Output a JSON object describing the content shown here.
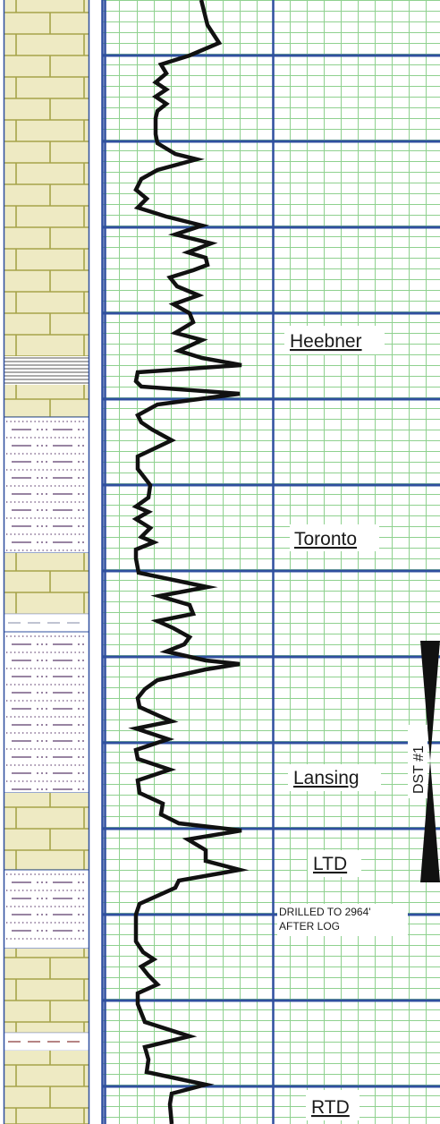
{
  "colors": {
    "grid_major": "#2f4f9f",
    "grid_minor": "#8fd18f",
    "curve": "#111111",
    "limestone_fill": "#eeeac3",
    "limestone_line": "#a6a34a",
    "shale_dot": "#5b3a6b",
    "track_border": "#2f4f9f"
  },
  "chart_data": {
    "type": "line",
    "series": [
      {
        "values": [
          [
            0,
            225
          ],
          [
            28,
            232
          ],
          [
            48,
            245
          ],
          [
            62,
            212
          ],
          [
            72,
            180
          ],
          [
            82,
            186
          ],
          [
            92,
            174
          ],
          [
            100,
            186
          ],
          [
            108,
            174
          ],
          [
            116,
            186
          ],
          [
            124,
            176
          ],
          [
            132,
            174
          ],
          [
            150,
            174
          ],
          [
            160,
            176
          ],
          [
            172,
            196
          ],
          [
            178,
            220
          ],
          [
            190,
            176
          ],
          [
            200,
            158
          ],
          [
            212,
            152
          ],
          [
            222,
            164
          ],
          [
            232,
            154
          ],
          [
            242,
            186
          ],
          [
            252,
            226
          ],
          [
            262,
            196
          ],
          [
            272,
            236
          ],
          [
            282,
            210
          ],
          [
            288,
            230
          ],
          [
            296,
            232
          ],
          [
            302,
            216
          ],
          [
            310,
            190
          ],
          [
            320,
            198
          ],
          [
            330,
            222
          ],
          [
            340,
            194
          ],
          [
            350,
            212
          ],
          [
            360,
            216
          ],
          [
            372,
            196
          ],
          [
            380,
            226
          ],
          [
            392,
            200
          ],
          [
            400,
            226
          ],
          [
            408,
            270
          ],
          [
            416,
            154
          ],
          [
            426,
            152
          ],
          [
            432,
            158
          ],
          [
            440,
            268
          ],
          [
            452,
            176
          ],
          [
            464,
            154
          ],
          [
            472,
            158
          ],
          [
            480,
            170
          ],
          [
            492,
            192
          ],
          [
            510,
            154
          ],
          [
            524,
            154
          ],
          [
            542,
            168
          ],
          [
            556,
            166
          ],
          [
            566,
            152
          ],
          [
            572,
            166
          ],
          [
            580,
            152
          ],
          [
            590,
            168
          ],
          [
            600,
            158
          ],
          [
            606,
            172
          ],
          [
            614,
            152
          ],
          [
            624,
            152
          ],
          [
            640,
            155
          ],
          [
            656,
            232
          ],
          [
            666,
            178
          ],
          [
            676,
            212
          ],
          [
            686,
            216
          ],
          [
            694,
            176
          ],
          [
            702,
            194
          ],
          [
            712,
            212
          ],
          [
            720,
            206
          ],
          [
            728,
            186
          ],
          [
            738,
            230
          ],
          [
            742,
            268
          ],
          [
            748,
            230
          ],
          [
            760,
            176
          ],
          [
            770,
            162
          ],
          [
            780,
            154
          ],
          [
            790,
            156
          ],
          [
            800,
            178
          ],
          [
            806,
            192
          ],
          [
            814,
            152
          ],
          [
            826,
            188
          ],
          [
            838,
            152
          ],
          [
            848,
            154
          ],
          [
            860,
            190
          ],
          [
            872,
            154
          ],
          [
            886,
            156
          ],
          [
            898,
            182
          ],
          [
            910,
            180
          ],
          [
            920,
            200
          ],
          [
            928,
            270
          ],
          [
            938,
            210
          ],
          [
            950,
            230
          ],
          [
            962,
            230
          ],
          [
            972,
            268
          ],
          [
            984,
            200
          ],
          [
            992,
            196
          ],
          [
            1010,
            156
          ],
          [
            1022,
            152
          ],
          [
            1034,
            152
          ],
          [
            1052,
            152
          ],
          [
            1064,
            160
          ],
          [
            1072,
            172
          ],
          [
            1080,
            158
          ],
          [
            1090,
            166
          ],
          [
            1100,
            176
          ],
          [
            1110,
            154
          ],
          [
            1122,
            154
          ],
          [
            1142,
            162
          ],
          [
            1158,
            212
          ],
          [
            1170,
            162
          ],
          [
            1184,
            166
          ],
          [
            1198,
            164
          ],
          [
            1212,
            230
          ],
          [
            1222,
            192
          ],
          [
            1234,
            190
          ],
          [
            1256,
            192
          ]
        ]
      }
    ],
    "annotations": [
      {
        "id": "heebner",
        "text": "Heebner"
      },
      {
        "id": "toronto",
        "text": "Toronto"
      },
      {
        "id": "lansing",
        "text": "Lansing"
      },
      {
        "id": "ltd",
        "text": "LTD"
      },
      {
        "id": "rtd",
        "text": "RTD"
      },
      {
        "id": "drilled_note_1",
        "text": "DRILLED TO 2964'"
      },
      {
        "id": "drilled_note_2",
        "text": "AFTER LOG"
      },
      {
        "id": "dst",
        "text": "DST #1"
      }
    ],
    "lithology": [
      {
        "from": 0,
        "to": 398,
        "rock": "limestone"
      },
      {
        "from": 398,
        "to": 430,
        "rock": "shale-bedded"
      },
      {
        "from": 430,
        "to": 466,
        "rock": "limestone"
      },
      {
        "from": 466,
        "to": 618,
        "rock": "shaly-sand"
      },
      {
        "from": 618,
        "to": 686,
        "rock": "limestone"
      },
      {
        "from": 686,
        "to": 706,
        "rock": "shale"
      },
      {
        "from": 706,
        "to": 886,
        "rock": "shaly-sand"
      },
      {
        "from": 886,
        "to": 972,
        "rock": "limestone"
      },
      {
        "from": 972,
        "to": 1060,
        "rock": "shaly-sand"
      },
      {
        "from": 1060,
        "to": 1154,
        "rock": "limestone"
      },
      {
        "from": 1154,
        "to": 1174,
        "rock": "red-shale"
      },
      {
        "from": 1174,
        "to": 1256,
        "rock": "limestone"
      }
    ],
    "grid": true
  }
}
